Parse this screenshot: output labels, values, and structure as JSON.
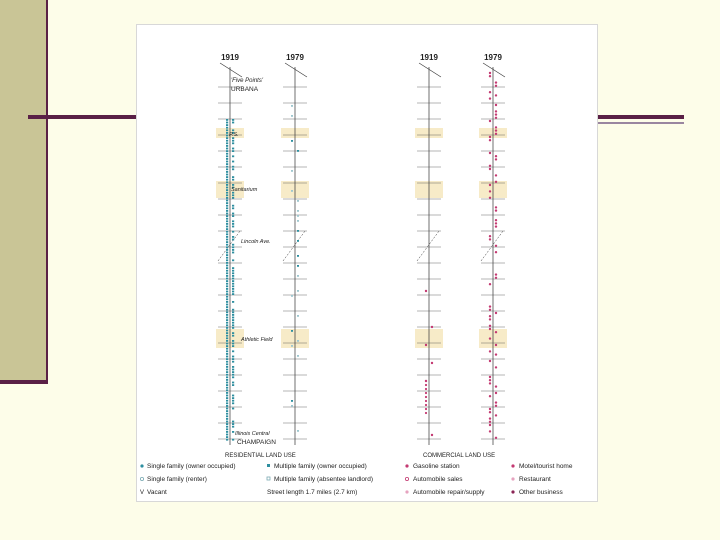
{
  "slide": {
    "accent_color": "#5a2046",
    "sidebar_color": "#c9c596",
    "background_color": "#fdfde9"
  },
  "figure": {
    "residential": {
      "year_left": "1919",
      "year_right": "1979",
      "north_note": "'Five Points'",
      "north_city": "URBANA",
      "street_labels": [
        "P.S.",
        "Sanitarium",
        "Lincoln Ave.",
        "Athletic Field"
      ],
      "south_note": "Illinois Central",
      "south_city": "CHAMPAIGN",
      "section_title": "RESIDENTIAL LAND USE"
    },
    "commercial": {
      "year_left": "1919",
      "year_right": "1979",
      "section_title": "COMMERCIAL LAND USE"
    },
    "legend": {
      "col1": [
        "Single family (owner occupied)",
        "Single family (renter)",
        "Vacant"
      ],
      "col2": [
        "Multiple family (owner occupied)",
        "Multiple family (absentee landlord)",
        "Street length 1.7 miles (2.7 km)"
      ],
      "col3": [
        "Gasoline station",
        "Automobile sales",
        "Automobile repair/supply"
      ],
      "col4": [
        "Motel/tourist home",
        "Restaurant",
        "Other business"
      ]
    },
    "colors": {
      "residential": "#2e8fa0",
      "residential_light": "#9fc7cf",
      "commercial": "#c43a72",
      "highlight": "#f7ebc8"
    }
  }
}
